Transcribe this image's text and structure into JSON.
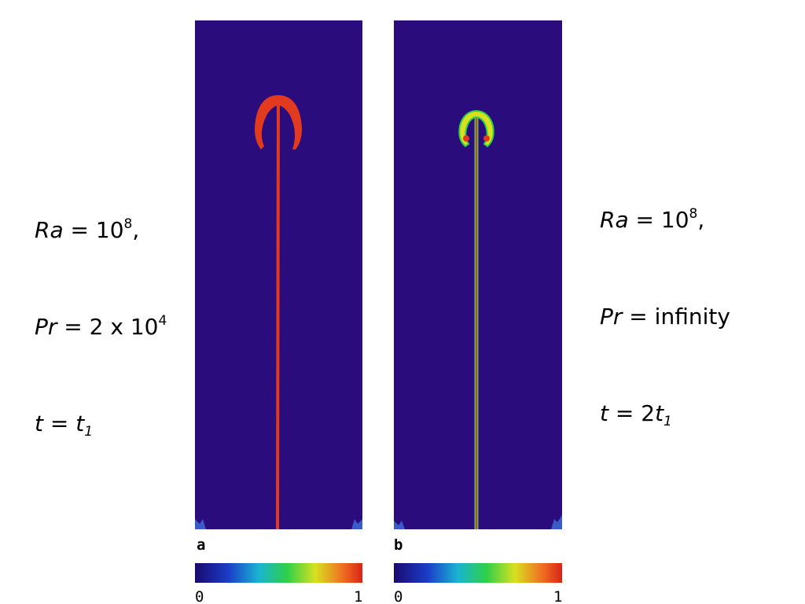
{
  "left_params": {
    "lines": [
      [
        "Ra",
        " = 10",
        "8",
        ","
      ],
      [
        "Pr",
        " = 2 x 10",
        "4"
      ],
      [
        "t",
        " = ",
        "t",
        "1"
      ]
    ]
  },
  "right_params": {
    "lines": [
      [
        "Ra",
        " = 10",
        "8",
        ","
      ],
      [
        "Pr",
        " = infinity"
      ],
      [
        "t",
        " = 2",
        "t",
        "1"
      ]
    ]
  },
  "panels": [
    {
      "label": "a",
      "colorbar_ticks": [
        0,
        1
      ]
    },
    {
      "label": "b",
      "colorbar_ticks": [
        0,
        1
      ]
    }
  ]
}
